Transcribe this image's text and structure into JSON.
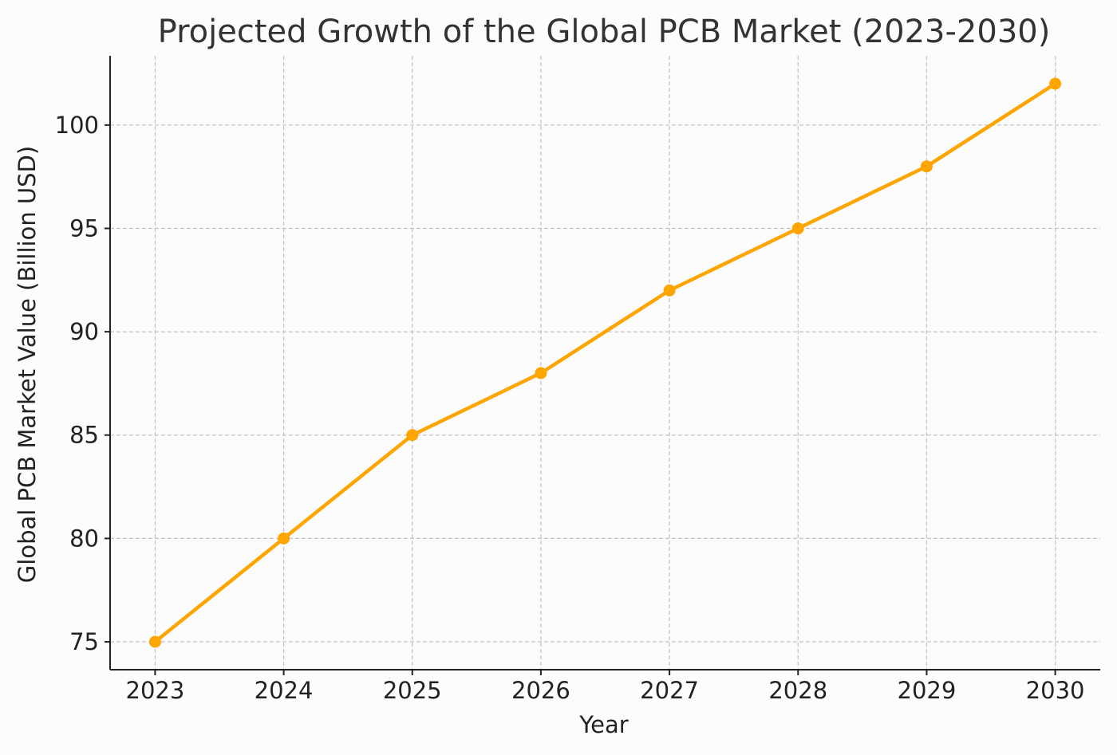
{
  "chart_data": {
    "type": "line",
    "title": "Projected Growth of the Global PCB Market (2023-2030)",
    "xlabel": "Year",
    "ylabel": "Global PCB Market Value (Billion USD)",
    "x": [
      2023,
      2024,
      2025,
      2026,
      2027,
      2028,
      2029,
      2030
    ],
    "series": [
      {
        "name": "Global PCB Market Value",
        "values": [
          75,
          80,
          85,
          88,
          92,
          95,
          98,
          102
        ]
      }
    ],
    "xticks": [
      "2023",
      "2024",
      "2025",
      "2026",
      "2027",
      "2028",
      "2029",
      "2030"
    ],
    "yticks": [
      75,
      80,
      85,
      90,
      95,
      100
    ],
    "ylim": [
      73.65,
      103.35
    ],
    "xlim": [
      2022.65,
      2030.35
    ],
    "grid": true,
    "colors": {
      "line": "#ffa500",
      "grid": "#c8bfc9",
      "text": "#222222",
      "title": "#333333"
    }
  }
}
